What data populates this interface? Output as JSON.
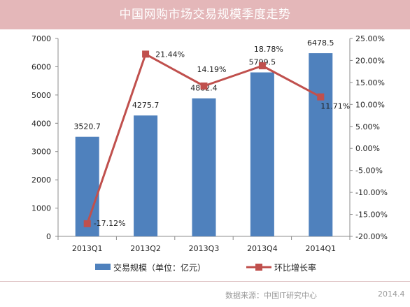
{
  "title": "中国网购市场交易规模季度走势",
  "source": "数据来源：中国IT研究中心",
  "date": "2014.4",
  "colors": {
    "bar": "#4f81bd",
    "line": "#c0504d",
    "banner": "#e4b7b9"
  },
  "chart_data": {
    "type": "bar",
    "categories": [
      "2013Q1",
      "2013Q2",
      "2013Q3",
      "2013Q4",
      "2014Q1"
    ],
    "series": [
      {
        "name": "交易规模（单位：亿元）",
        "type": "bar",
        "axis": "left",
        "values": [
          3520.7,
          4275.7,
          4882.4,
          5799.5,
          6478.5
        ],
        "labels": [
          "3520.7",
          "4275.7",
          "4882.4",
          "5799.5",
          "6478.5"
        ]
      },
      {
        "name": "环比增长率",
        "type": "line",
        "axis": "right",
        "values": [
          -17.12,
          21.44,
          14.19,
          18.78,
          11.71
        ],
        "labels": [
          "-17.12%",
          "21.44%",
          "14.19%",
          "18.78%",
          "11.71%"
        ]
      }
    ],
    "y_left": {
      "min": 0,
      "max": 7000,
      "ticks": [
        "0",
        "1000",
        "2000",
        "3000",
        "4000",
        "5000",
        "6000",
        "7000"
      ]
    },
    "y_right": {
      "min": -20,
      "max": 25,
      "ticks": [
        "-20.00%",
        "-15.00%",
        "-10.00%",
        "-5.00%",
        "0.00%",
        "5.00%",
        "10.00%",
        "15.00%",
        "20.00%",
        "25.00%"
      ]
    },
    "grid": false,
    "legend_position": "bottom"
  }
}
